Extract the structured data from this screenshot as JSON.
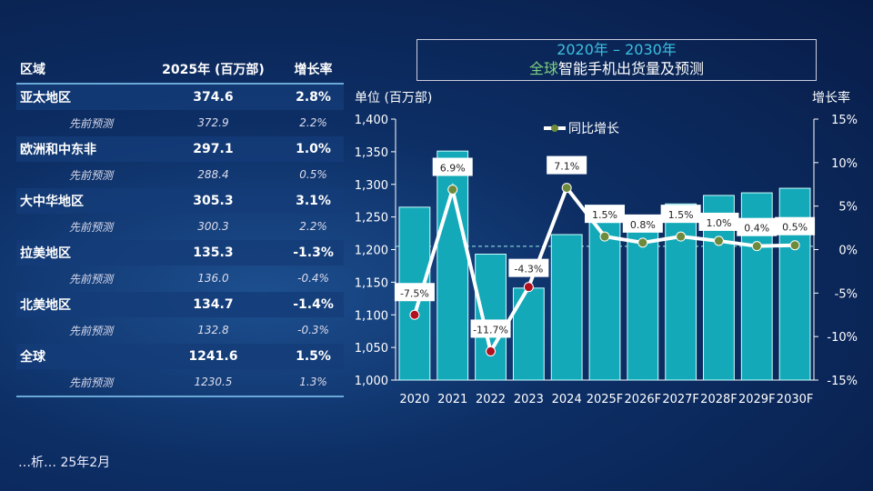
{
  "table": {
    "headers": [
      "区域",
      "2025年 (百万部)",
      "增长率"
    ],
    "rows": [
      {
        "region": "亚太地区",
        "value": "374.6",
        "growth": "2.8%",
        "prev_label": "先前预测",
        "prev_value": "372.9",
        "prev_growth": "2.2%"
      },
      {
        "region": "欧洲和中东非",
        "value": "297.1",
        "growth": "1.0%",
        "prev_label": "先前预测",
        "prev_value": "288.4",
        "prev_growth": "0.5%"
      },
      {
        "region": "大中华地区",
        "value": "305.3",
        "growth": "3.1%",
        "prev_label": "先前预测",
        "prev_value": "300.3",
        "prev_growth": "2.2%"
      },
      {
        "region": "拉美地区",
        "value": "135.3",
        "growth": "-1.3%",
        "prev_label": "先前预测",
        "prev_value": "136.0",
        "prev_growth": "-0.4%"
      },
      {
        "region": "北美地区",
        "value": "134.7",
        "growth": "-1.4%",
        "prev_label": "先前预测",
        "prev_value": "132.8",
        "prev_growth": "-0.3%"
      },
      {
        "region": "全球",
        "value": "1241.6",
        "growth": "1.5%",
        "prev_label": "先前预测",
        "prev_value": "1230.5",
        "prev_growth": "1.3%"
      }
    ]
  },
  "footer": "…析… 25年2月",
  "chart_data": {
    "type": "bar+line",
    "title_line1": "2020年 – 2030年",
    "title_line2_a": "全球",
    "title_line2_b": "智能手机出货量及预测",
    "ylabel": "单位 (百万部)",
    "y2label": "增长率",
    "categories": [
      "2020",
      "2021",
      "2022",
      "2023",
      "2024",
      "2025F",
      "2026F",
      "2027F",
      "2028F",
      "2029F",
      "2030F"
    ],
    "ylim": [
      1000,
      1400
    ],
    "yticks": [
      "1,000",
      "1,050",
      "1,100",
      "1,150",
      "1,200",
      "1,250",
      "1,300",
      "1,350",
      "1,400"
    ],
    "y2lim": [
      -15,
      15
    ],
    "y2ticks": [
      "-15%",
      "-10%",
      "-5%",
      "0%",
      "5%",
      "10%",
      "15%"
    ],
    "bars": [
      1265,
      1351,
      1193,
      1141,
      1223,
      1241.6,
      1251,
      1270,
      1283,
      1287,
      1294
    ],
    "series": [
      {
        "name": "同比增长",
        "values": [
          -7.5,
          6.9,
          -11.7,
          -4.3,
          7.1,
          1.5,
          0.8,
          1.5,
          1.0,
          0.4,
          0.5
        ],
        "labels": [
          "-7.5%",
          "6.9%",
          "-11.7%",
          "-4.3%",
          "7.1%",
          "1.5%",
          "0.8%",
          "1.5%",
          "1.0%",
          "0.4%",
          "0.5%"
        ]
      }
    ],
    "colors": {
      "bar": "#13a9b8",
      "line": "#ffffff",
      "pos_marker": "#6e8b3d",
      "neg_marker": "#b01020"
    },
    "legend": "top"
  }
}
